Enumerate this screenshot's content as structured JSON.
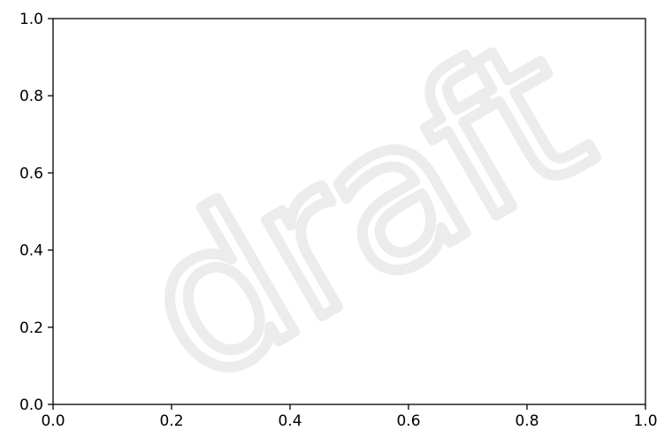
{
  "chart_data": {
    "type": "line",
    "title": "",
    "xlabel": "",
    "ylabel": "",
    "xlim": [
      0,
      1
    ],
    "ylim": [
      0,
      1
    ],
    "x_ticks": [
      0.0,
      0.2,
      0.4,
      0.6,
      0.8,
      1.0
    ],
    "x_tick_labels": [
      "0.0",
      "0.2",
      "0.4",
      "0.6",
      "0.8",
      "1.0"
    ],
    "y_ticks": [
      0.0,
      0.2,
      0.4,
      0.6,
      0.8,
      1.0
    ],
    "y_tick_labels": [
      "0.0",
      "0.2",
      "0.4",
      "0.6",
      "0.8",
      "1.0"
    ],
    "series": [],
    "grid": false,
    "legend": "none"
  },
  "watermark": {
    "text": "draft",
    "color": "#ececec"
  },
  "colors": {
    "axes": "#000000",
    "background": "#ffffff"
  }
}
